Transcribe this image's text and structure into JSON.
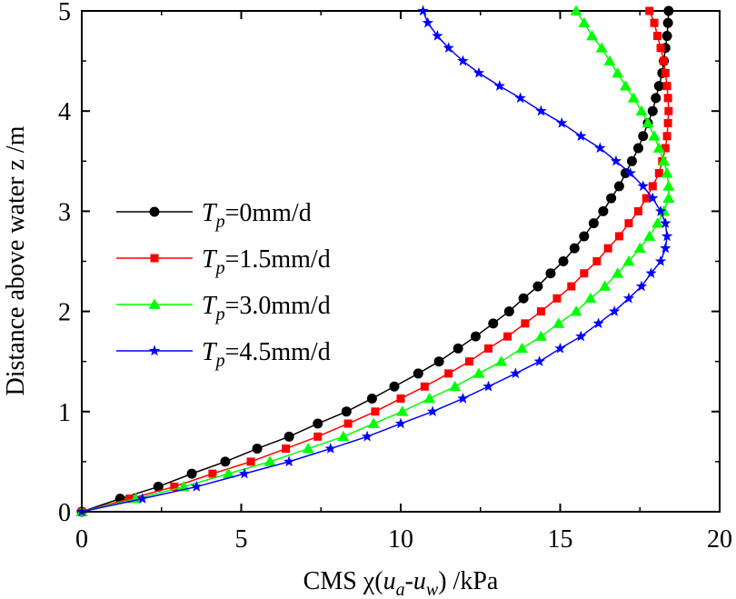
{
  "chart_data": {
    "type": "line",
    "title": "",
    "xlabel": {
      "prefix": "CMS  χ(",
      "u1": "u",
      "s1": "a",
      "dash": "-",
      "u2": "u",
      "s2": "w",
      "suffix": ") /kPa"
    },
    "ylabel": "Distance above water z /m",
    "xlim": [
      0,
      20
    ],
    "ylim": [
      0,
      5
    ],
    "xticks": [
      "0",
      "5",
      "10",
      "15",
      "20"
    ],
    "yticks": [
      "0",
      "1",
      "2",
      "3",
      "4",
      "5"
    ],
    "series": [
      {
        "name": "T_p=0mm/d",
        "label_main": "T",
        "label_sub": "p",
        "label_rest": "=0mm/d",
        "color": "#000000",
        "marker": "circle",
        "points": [
          [
            0.0,
            0.0
          ],
          [
            1.2,
            0.13
          ],
          [
            2.4,
            0.25
          ],
          [
            3.45,
            0.38
          ],
          [
            4.5,
            0.5
          ],
          [
            5.5,
            0.63
          ],
          [
            6.5,
            0.75
          ],
          [
            7.4,
            0.88
          ],
          [
            8.3,
            1.0
          ],
          [
            9.1,
            1.13
          ],
          [
            9.8,
            1.25
          ],
          [
            10.55,
            1.38
          ],
          [
            11.2,
            1.5
          ],
          [
            11.8,
            1.63
          ],
          [
            12.35,
            1.75
          ],
          [
            12.9,
            1.88
          ],
          [
            13.4,
            2.0
          ],
          [
            13.85,
            2.13
          ],
          [
            14.3,
            2.25
          ],
          [
            14.7,
            2.38
          ],
          [
            15.1,
            2.5
          ],
          [
            15.45,
            2.63
          ],
          [
            15.75,
            2.75
          ],
          [
            16.05,
            2.88
          ],
          [
            16.35,
            3.0
          ],
          [
            16.6,
            3.13
          ],
          [
            16.85,
            3.25
          ],
          [
            17.05,
            3.38
          ],
          [
            17.25,
            3.5
          ],
          [
            17.45,
            3.63
          ],
          [
            17.6,
            3.75
          ],
          [
            17.75,
            3.88
          ],
          [
            17.9,
            4.0
          ],
          [
            18.0,
            4.13
          ],
          [
            18.1,
            4.25
          ],
          [
            18.2,
            4.38
          ],
          [
            18.25,
            4.5
          ],
          [
            18.3,
            4.63
          ],
          [
            18.35,
            4.75
          ],
          [
            18.38,
            4.88
          ],
          [
            18.4,
            5.0
          ]
        ]
      },
      {
        "name": "T_p=1.5mm/d",
        "label_main": "T",
        "label_sub": "p",
        "label_rest": "=1.5mm/d",
        "color": "#ff0000",
        "marker": "square",
        "points": [
          [
            0.0,
            0.0
          ],
          [
            1.5,
            0.13
          ],
          [
            2.9,
            0.25
          ],
          [
            4.1,
            0.38
          ],
          [
            5.3,
            0.5
          ],
          [
            6.4,
            0.63
          ],
          [
            7.4,
            0.75
          ],
          [
            8.35,
            0.88
          ],
          [
            9.2,
            1.0
          ],
          [
            10.0,
            1.13
          ],
          [
            10.75,
            1.25
          ],
          [
            11.5,
            1.38
          ],
          [
            12.15,
            1.5
          ],
          [
            12.75,
            1.63
          ],
          [
            13.35,
            1.75
          ],
          [
            13.9,
            1.88
          ],
          [
            14.4,
            2.0
          ],
          [
            14.9,
            2.13
          ],
          [
            15.35,
            2.25
          ],
          [
            15.75,
            2.38
          ],
          [
            16.15,
            2.5
          ],
          [
            16.5,
            2.63
          ],
          [
            16.85,
            2.75
          ],
          [
            17.15,
            2.88
          ],
          [
            17.45,
            3.0
          ],
          [
            17.7,
            3.13
          ],
          [
            17.9,
            3.25
          ],
          [
            18.1,
            3.38
          ],
          [
            18.2,
            3.5
          ],
          [
            18.3,
            3.63
          ],
          [
            18.35,
            3.75
          ],
          [
            18.38,
            3.88
          ],
          [
            18.4,
            4.0
          ],
          [
            18.38,
            4.13
          ],
          [
            18.35,
            4.25
          ],
          [
            18.3,
            4.38
          ],
          [
            18.25,
            4.5
          ],
          [
            18.15,
            4.63
          ],
          [
            18.05,
            4.75
          ],
          [
            17.95,
            4.88
          ],
          [
            17.8,
            5.0
          ]
        ]
      },
      {
        "name": "T_p=3.0mm/d",
        "label_main": "T",
        "label_sub": "p",
        "label_rest": "=3.0mm/d",
        "color": "#00ff00",
        "marker": "triangle",
        "points": [
          [
            0.0,
            0.0
          ],
          [
            1.7,
            0.13
          ],
          [
            3.2,
            0.25
          ],
          [
            4.6,
            0.38
          ],
          [
            5.9,
            0.5
          ],
          [
            7.1,
            0.63
          ],
          [
            8.2,
            0.75
          ],
          [
            9.15,
            0.88
          ],
          [
            10.05,
            1.0
          ],
          [
            10.9,
            1.13
          ],
          [
            11.7,
            1.25
          ],
          [
            12.45,
            1.38
          ],
          [
            13.15,
            1.5
          ],
          [
            13.8,
            1.63
          ],
          [
            14.4,
            1.75
          ],
          [
            14.95,
            1.88
          ],
          [
            15.5,
            2.0
          ],
          [
            15.95,
            2.13
          ],
          [
            16.4,
            2.25
          ],
          [
            16.8,
            2.38
          ],
          [
            17.15,
            2.5
          ],
          [
            17.5,
            2.63
          ],
          [
            17.8,
            2.75
          ],
          [
            18.05,
            2.88
          ],
          [
            18.25,
            3.0
          ],
          [
            18.4,
            3.13
          ],
          [
            18.4,
            3.25
          ],
          [
            18.35,
            3.38
          ],
          [
            18.25,
            3.5
          ],
          [
            18.1,
            3.63
          ],
          [
            17.95,
            3.75
          ],
          [
            17.75,
            3.88
          ],
          [
            17.55,
            4.0
          ],
          [
            17.3,
            4.13
          ],
          [
            17.05,
            4.25
          ],
          [
            16.8,
            4.38
          ],
          [
            16.55,
            4.5
          ],
          [
            16.3,
            4.63
          ],
          [
            16.0,
            4.75
          ],
          [
            15.75,
            4.88
          ],
          [
            15.5,
            5.0
          ]
        ]
      },
      {
        "name": "T_p=4.5mm/d",
        "label_main": "T",
        "label_sub": "p",
        "label_rest": "=4.5mm/d",
        "color": "#0000ff",
        "marker": "star",
        "points": [
          [
            0.0,
            0.0
          ],
          [
            1.9,
            0.13
          ],
          [
            3.6,
            0.25
          ],
          [
            5.1,
            0.38
          ],
          [
            6.5,
            0.5
          ],
          [
            7.8,
            0.63
          ],
          [
            8.95,
            0.75
          ],
          [
            10.0,
            0.88
          ],
          [
            11.0,
            1.0
          ],
          [
            11.95,
            1.13
          ],
          [
            12.75,
            1.25
          ],
          [
            13.6,
            1.38
          ],
          [
            14.35,
            1.5
          ],
          [
            15.0,
            1.63
          ],
          [
            15.65,
            1.75
          ],
          [
            16.2,
            1.88
          ],
          [
            16.7,
            2.0
          ],
          [
            17.15,
            2.13
          ],
          [
            17.55,
            2.25
          ],
          [
            17.85,
            2.38
          ],
          [
            18.15,
            2.5
          ],
          [
            18.3,
            2.63
          ],
          [
            18.35,
            2.75
          ],
          [
            18.3,
            2.88
          ],
          [
            18.15,
            3.0
          ],
          [
            17.9,
            3.13
          ],
          [
            17.6,
            3.25
          ],
          [
            17.2,
            3.38
          ],
          [
            16.75,
            3.5
          ],
          [
            16.25,
            3.63
          ],
          [
            15.65,
            3.75
          ],
          [
            15.05,
            3.88
          ],
          [
            14.4,
            4.0
          ],
          [
            13.75,
            4.13
          ],
          [
            13.1,
            4.25
          ],
          [
            12.45,
            4.38
          ],
          [
            11.95,
            4.5
          ],
          [
            11.5,
            4.63
          ],
          [
            11.15,
            4.75
          ],
          [
            10.85,
            4.88
          ],
          [
            10.7,
            5.0
          ]
        ]
      }
    ]
  }
}
